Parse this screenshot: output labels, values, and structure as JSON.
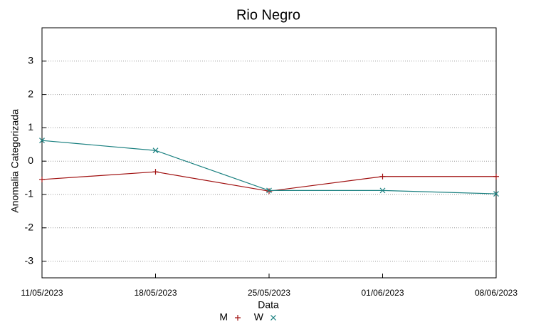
{
  "chart_data": {
    "type": "line",
    "title": "Rio Negro",
    "x_label": "Data",
    "y_label": "Anomalia Categorizada",
    "categories": [
      "11/05/2023",
      "18/05/2023",
      "25/05/2023",
      "01/06/2023",
      "08/06/2023"
    ],
    "series": [
      {
        "name": "M",
        "color": "#a01010",
        "marker": "+",
        "values": [
          -0.55,
          -0.32,
          -0.9,
          -0.46,
          -0.46
        ]
      },
      {
        "name": "W",
        "color": "#1a8080",
        "marker": "x",
        "values": [
          0.62,
          0.32,
          -0.88,
          -0.88,
          -0.98
        ]
      }
    ],
    "ylim": [
      -3.5,
      4
    ],
    "yticks": [
      -3,
      -2,
      -1,
      0,
      1,
      2,
      3
    ],
    "grid": true
  }
}
